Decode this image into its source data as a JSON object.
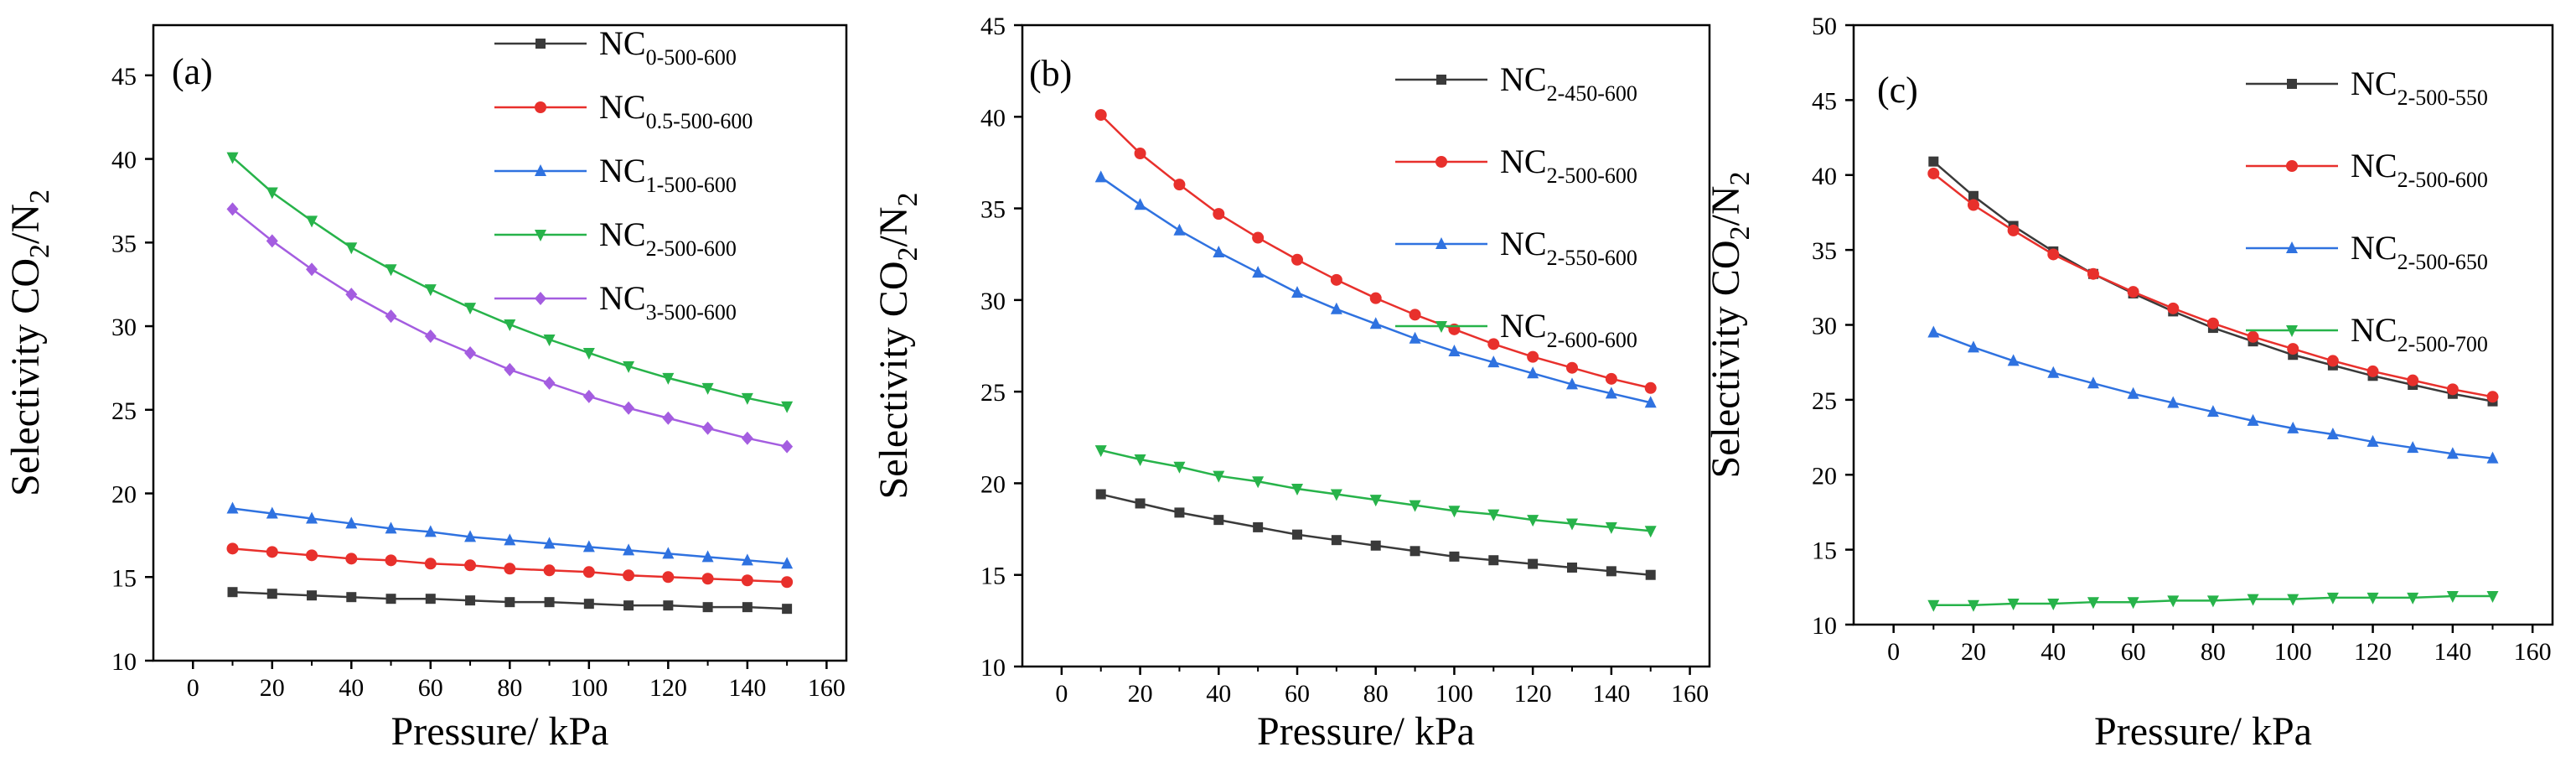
{
  "figure": {
    "description_label": "CO2/N2 selectivity versus pressure"
  },
  "chart_data": [
    {
      "type": "line",
      "panel_label": "(a)",
      "xlabel": "Pressure/ kPa",
      "ylabel_main": "Selectivity CO",
      "ylabel_sub1": "2",
      "ylabel_mid": "/N",
      "ylabel_sub2": "2",
      "xlim": [
        -10,
        165
      ],
      "ylim": [
        10,
        48
      ],
      "xticks": [
        0,
        20,
        40,
        60,
        80,
        100,
        120,
        140,
        160
      ],
      "yticks": [
        10,
        15,
        20,
        25,
        30,
        35,
        40,
        45
      ],
      "legend_position": "top-right",
      "x": [
        10,
        20,
        30,
        40,
        50,
        60,
        70,
        80,
        90,
        100,
        110,
        120,
        130,
        140,
        150
      ],
      "series": [
        {
          "name_main": "NC",
          "name_sub": "0-500-600",
          "color": "#3a3a3a",
          "marker": "square",
          "values": [
            14.1,
            14.0,
            13.9,
            13.8,
            13.7,
            13.7,
            13.6,
            13.5,
            13.5,
            13.4,
            13.3,
            13.3,
            13.2,
            13.2,
            13.1
          ]
        },
        {
          "name_main": "NC",
          "name_sub": "0.5-500-600",
          "color": "#e8302c",
          "marker": "circle",
          "values": [
            16.7,
            16.5,
            16.3,
            16.1,
            16.0,
            15.8,
            15.7,
            15.5,
            15.4,
            15.3,
            15.1,
            15.0,
            14.9,
            14.8,
            14.7
          ]
        },
        {
          "name_main": "NC",
          "name_sub": "1-500-600",
          "color": "#2f72e0",
          "marker": "triangle-up",
          "values": [
            19.1,
            18.8,
            18.5,
            18.2,
            17.9,
            17.7,
            17.4,
            17.2,
            17.0,
            16.8,
            16.6,
            16.4,
            16.2,
            16.0,
            15.8
          ]
        },
        {
          "name_main": "NC",
          "name_sub": "2-500-600",
          "color": "#27b34a",
          "marker": "triangle-down",
          "values": [
            40.1,
            38.0,
            36.3,
            34.7,
            33.4,
            32.2,
            31.1,
            30.1,
            29.2,
            28.4,
            27.6,
            26.9,
            26.3,
            25.7,
            25.2
          ]
        },
        {
          "name_main": "NC",
          "name_sub": "3-500-600",
          "color": "#a45de0",
          "marker": "diamond",
          "values": [
            37.0,
            35.1,
            33.4,
            31.9,
            30.6,
            29.4,
            28.4,
            27.4,
            26.6,
            25.8,
            25.1,
            24.5,
            23.9,
            23.3,
            22.8
          ]
        }
      ]
    },
    {
      "type": "line",
      "panel_label": "(b)",
      "xlabel": "Pressure/ kPa",
      "ylabel_main": "Selectivity CO",
      "ylabel_sub1": "2",
      "ylabel_mid": "/N",
      "ylabel_sub2": "2",
      "xlim": [
        -10,
        165
      ],
      "ylim": [
        10,
        45
      ],
      "xticks": [
        0,
        20,
        40,
        60,
        80,
        100,
        120,
        140,
        160
      ],
      "yticks": [
        10,
        15,
        20,
        25,
        30,
        35,
        40,
        45
      ],
      "legend_position": "top-right",
      "x": [
        10,
        20,
        30,
        40,
        50,
        60,
        70,
        80,
        90,
        100,
        110,
        120,
        130,
        140,
        150
      ],
      "series": [
        {
          "name_main": "NC",
          "name_sub": "2-450-600",
          "color": "#3a3a3a",
          "marker": "square",
          "values": [
            19.4,
            18.9,
            18.4,
            18.0,
            17.6,
            17.2,
            16.9,
            16.6,
            16.3,
            16.0,
            15.8,
            15.6,
            15.4,
            15.2,
            15.0
          ]
        },
        {
          "name_main": "NC",
          "name_sub": "2-500-600",
          "color": "#e8302c",
          "marker": "circle",
          "values": [
            40.1,
            38.0,
            36.3,
            34.7,
            33.4,
            32.2,
            31.1,
            30.1,
            29.2,
            28.4,
            27.6,
            26.9,
            26.3,
            25.7,
            25.2
          ]
        },
        {
          "name_main": "NC",
          "name_sub": "2-550-600",
          "color": "#2f72e0",
          "marker": "triangle-up",
          "values": [
            36.7,
            35.2,
            33.8,
            32.6,
            31.5,
            30.4,
            29.5,
            28.7,
            27.9,
            27.2,
            26.6,
            26.0,
            25.4,
            24.9,
            24.4
          ]
        },
        {
          "name_main": "NC",
          "name_sub": "2-600-600",
          "color": "#27b34a",
          "marker": "triangle-down",
          "values": [
            21.8,
            21.3,
            20.9,
            20.4,
            20.1,
            19.7,
            19.4,
            19.1,
            18.8,
            18.5,
            18.3,
            18.0,
            17.8,
            17.6,
            17.4
          ]
        }
      ]
    },
    {
      "type": "line",
      "panel_label": "(c)",
      "xlabel": "Pressure/ kPa",
      "ylabel_main": "Selectivity CO",
      "ylabel_sub1": "2",
      "ylabel_mid": "/N",
      "ylabel_sub2": "2",
      "xlim": [
        -10,
        165
      ],
      "ylim": [
        10,
        50
      ],
      "xticks": [
        0,
        20,
        40,
        60,
        80,
        100,
        120,
        140,
        160
      ],
      "yticks": [
        10,
        15,
        20,
        25,
        30,
        35,
        40,
        45,
        50
      ],
      "legend_position": "top-right",
      "x": [
        10,
        20,
        30,
        40,
        50,
        60,
        70,
        80,
        90,
        100,
        110,
        120,
        130,
        140,
        150
      ],
      "series": [
        {
          "name_main": "NC",
          "name_sub": "2-500-550",
          "color": "#3a3a3a",
          "marker": "square",
          "values": [
            40.9,
            38.6,
            36.6,
            34.9,
            33.4,
            32.1,
            30.9,
            29.8,
            28.9,
            28.0,
            27.3,
            26.6,
            26.0,
            25.4,
            24.9
          ]
        },
        {
          "name_main": "NC",
          "name_sub": "2-500-600",
          "color": "#e8302c",
          "marker": "circle",
          "values": [
            40.1,
            38.0,
            36.3,
            34.7,
            33.4,
            32.2,
            31.1,
            30.1,
            29.2,
            28.4,
            27.6,
            26.9,
            26.3,
            25.7,
            25.2
          ]
        },
        {
          "name_main": "NC",
          "name_sub": "2-500-650",
          "color": "#2f72e0",
          "marker": "triangle-up",
          "values": [
            29.5,
            28.5,
            27.6,
            26.8,
            26.1,
            25.4,
            24.8,
            24.2,
            23.6,
            23.1,
            22.7,
            22.2,
            21.8,
            21.4,
            21.1
          ]
        },
        {
          "name_main": "NC",
          "name_sub": "2-500-700",
          "color": "#27b34a",
          "marker": "triangle-down",
          "values": [
            11.3,
            11.3,
            11.4,
            11.4,
            11.5,
            11.5,
            11.6,
            11.6,
            11.7,
            11.7,
            11.8,
            11.8,
            11.8,
            11.9,
            11.9
          ]
        }
      ]
    }
  ]
}
